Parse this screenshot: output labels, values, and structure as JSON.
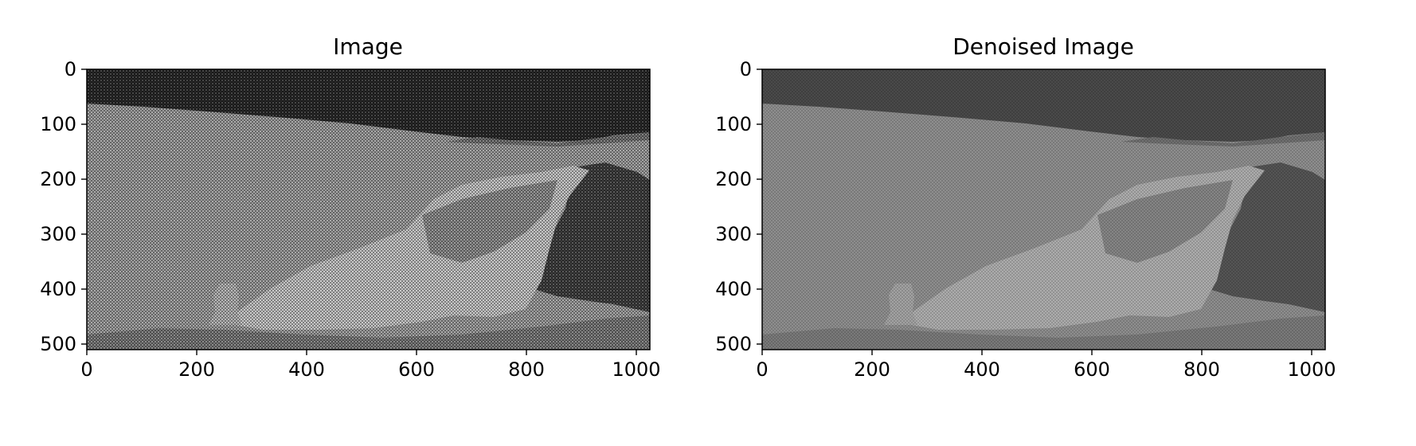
{
  "panels": [
    {
      "title": "Image",
      "x_ticks": [
        "0",
        "200",
        "400",
        "600",
        "800",
        "1000"
      ],
      "y_ticks": [
        "0",
        "100",
        "200",
        "300",
        "400",
        "500"
      ]
    },
    {
      "title": "Denoised Image",
      "x_ticks": [
        "0",
        "200",
        "400",
        "600",
        "800",
        "1000"
      ],
      "y_ticks": [
        "0",
        "100",
        "200",
        "300",
        "400",
        "500"
      ]
    }
  ]
}
